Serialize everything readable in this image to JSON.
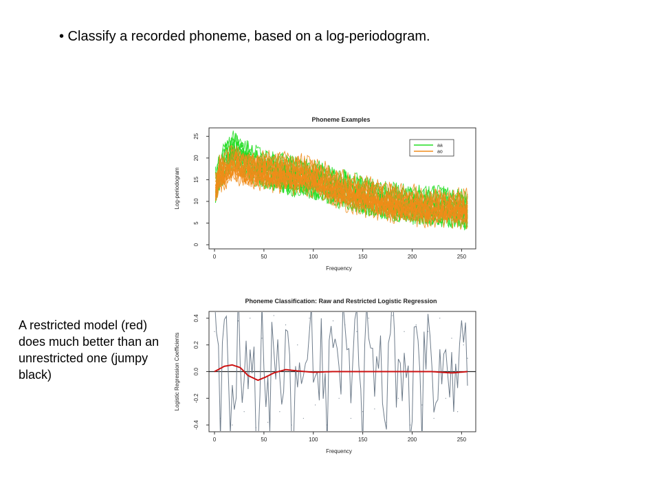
{
  "slide": {
    "bullet_text": "• Classify a recorded phoneme, based on a log-periodogram.",
    "note_text": "A restricted model (red) does much better than an unrestricted one (jumpy black)"
  },
  "chart_data": [
    {
      "type": "line",
      "title": "Phoneme Examples",
      "xlabel": "Frequency",
      "ylabel": "Log-periodogram",
      "xlim": [
        0,
        256
      ],
      "ylim": [
        0,
        26
      ],
      "xticks": [
        0,
        50,
        100,
        150,
        200,
        250
      ],
      "yticks": [
        0,
        5,
        10,
        15,
        20,
        25
      ],
      "legend_position": "top-right",
      "series": [
        {
          "name": "aa",
          "color": "#22dd22",
          "x": [
            0,
            5,
            10,
            15,
            20,
            25,
            30,
            40,
            50,
            60,
            70,
            80,
            90,
            100,
            110,
            120,
            130,
            140,
            150,
            160,
            170,
            180,
            190,
            200,
            210,
            220,
            230,
            240,
            250,
            256
          ],
          "values": [
            13,
            17,
            19,
            21,
            22,
            21,
            20,
            18.5,
            17.5,
            17,
            16.5,
            16,
            15.5,
            15,
            14.5,
            13.5,
            13,
            12,
            11.5,
            11,
            10.5,
            10,
            9.5,
            9.5,
            9,
            9,
            9,
            8.5,
            8.5,
            8
          ]
        },
        {
          "name": "ao",
          "color": "#f08c1a",
          "x": [
            0,
            5,
            10,
            15,
            20,
            25,
            30,
            40,
            50,
            60,
            70,
            80,
            90,
            100,
            110,
            120,
            130,
            140,
            150,
            160,
            170,
            180,
            190,
            200,
            210,
            220,
            230,
            240,
            250,
            256
          ],
          "values": [
            12,
            16,
            17,
            18,
            18.5,
            18,
            17.5,
            17,
            17,
            16.5,
            16.5,
            16,
            16,
            15.5,
            14.5,
            13.5,
            12.5,
            11.5,
            11,
            10.5,
            10,
            9.5,
            9,
            9,
            8.5,
            8.5,
            8.5,
            8.5,
            8,
            8
          ]
        }
      ]
    },
    {
      "type": "line",
      "title": "Phoneme Classification: Raw and Restricted Logistic Regression",
      "xlabel": "Frequency",
      "ylabel": "Logistic Regression Coefficients",
      "xlim": [
        0,
        256
      ],
      "ylim": [
        -0.42,
        0.42
      ],
      "xticks": [
        0,
        50,
        100,
        150,
        200,
        250
      ],
      "yticks": [
        -0.4,
        -0.2,
        0.0,
        0.2,
        0.4
      ],
      "reference_line": 0,
      "series": [
        {
          "color": "#6d7b8a",
          "x": [
            0,
            6,
            12,
            18,
            24,
            30,
            36,
            42,
            48,
            54,
            60,
            66,
            72,
            78,
            84,
            90,
            96,
            102,
            108,
            114,
            120,
            126,
            132,
            138,
            144,
            150,
            156,
            162,
            168,
            174,
            180,
            186,
            192,
            198,
            204,
            210,
            216,
            222,
            228,
            234,
            240,
            246,
            252,
            256
          ],
          "values": [
            0.3,
            -0.35,
            0.4,
            -0.4,
            0.38,
            -0.3,
            0.4,
            -0.42,
            0.25,
            -0.38,
            0.42,
            -0.3,
            0.35,
            -0.4,
            0.2,
            -0.35,
            0.4,
            -0.25,
            0.3,
            -0.4,
            0.38,
            -0.2,
            0.35,
            -0.35,
            0.3,
            -0.3,
            0.4,
            -0.28,
            0.25,
            -0.38,
            0.42,
            -0.2,
            0.3,
            -0.4,
            0.35,
            -0.25,
            0.3,
            -0.35,
            0.4,
            -0.2,
            0.25,
            -0.3,
            0.2,
            0.1
          ]
        },
        {
          "color": "#cc1111",
          "x": [
            0,
            10,
            18,
            26,
            34,
            44,
            52,
            60,
            72,
            84,
            100,
            120,
            140,
            160,
            180,
            200,
            220,
            240,
            256
          ],
          "values": [
            0.0,
            0.04,
            0.05,
            0.03,
            -0.03,
            -0.065,
            -0.04,
            -0.01,
            0.015,
            0.005,
            -0.005,
            0.0,
            0.0,
            0.0,
            0.0,
            0.0,
            0.0,
            -0.01,
            0.0
          ]
        }
      ]
    }
  ]
}
